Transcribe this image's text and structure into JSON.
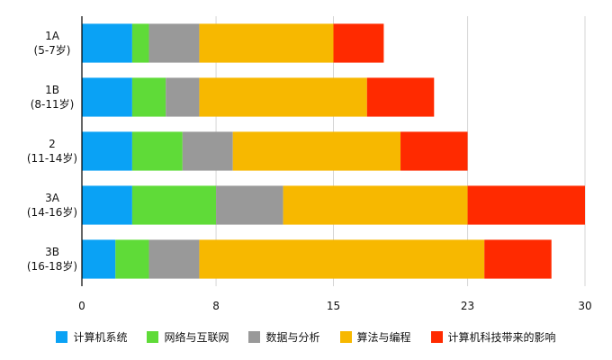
{
  "chart_data": {
    "type": "bar",
    "orientation": "horizontal",
    "stacked": true,
    "categories": [
      {
        "line1": "1A",
        "line2": "(5-7岁)"
      },
      {
        "line1": "1B",
        "line2": "(8-11岁)"
      },
      {
        "line1": "2",
        "line2": "(11-14岁)"
      },
      {
        "line1": "3A",
        "line2": "(14-16岁)"
      },
      {
        "line1": "3B",
        "line2": "(16-18岁)"
      }
    ],
    "series": [
      {
        "name": "计算机系统",
        "color": "#0aa2f5",
        "values": [
          3,
          3,
          3,
          3,
          2
        ]
      },
      {
        "name": "网络与互联网",
        "color": "#5fdb38",
        "values": [
          1,
          2,
          3,
          5,
          2
        ]
      },
      {
        "name": "数据与分析",
        "color": "#999999",
        "values": [
          3,
          2,
          3,
          4,
          3
        ]
      },
      {
        "name": "算法与编程",
        "color": "#f7b800",
        "values": [
          8,
          10,
          10,
          11,
          17
        ]
      },
      {
        "name": "计算机科技带来的影响",
        "color": "#ff2a00",
        "values": [
          3,
          4,
          4,
          7,
          4
        ]
      }
    ],
    "xlim": [
      0,
      30
    ],
    "xticks": [
      0,
      8,
      15,
      23,
      30
    ],
    "tick_labels": [
      "0",
      "8",
      "15",
      "23",
      "30"
    ],
    "grid": true,
    "legend": "bottom"
  }
}
